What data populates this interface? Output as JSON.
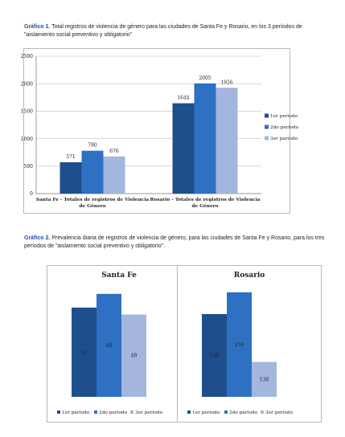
{
  "caption1": {
    "label": "Gráfico 1.",
    "text": " Total registros de violencia de género para las ciudades de Santa Fe y Rosario, en los 3 períodos de \"aislamiento social preventivo y obligatorio\""
  },
  "caption2": {
    "label": "Gráfico 2.",
    "text": " Prevalencia diaria de registros de violencia de género, para las ciudades de Santa Fe y Rosario, para los tres períodos de \"aislamiento social preventivo y obligatorio\"."
  },
  "colors": {
    "p1": "#1f4e8c",
    "p2": "#2e70c2",
    "p3": "#a4b6dd",
    "grid": "#bfbfbf",
    "axis": "#7f7f7f"
  },
  "chart_data": [
    {
      "type": "bar",
      "categories": [
        "Santa Fe - Totales de registros de Violencia de Género",
        "Rosario - Totales de registros de Violencia de Género"
      ],
      "category_lines": [
        [
          "Santa Fe - Totales de registros de Violencia",
          "de Género"
        ],
        [
          "Rosario - Totales de registros de Violencia",
          "de Género"
        ]
      ],
      "series": [
        {
          "name": "1er período",
          "values": [
            571,
            1644
          ]
        },
        {
          "name": "2do período",
          "values": [
            780,
            2005
          ]
        },
        {
          "name": "3er período",
          "values": [
            676,
            1926
          ]
        }
      ],
      "ylim": [
        0,
        2500
      ],
      "yticks": [
        "0",
        "500",
        "1000",
        "1500",
        "2000",
        "2500"
      ],
      "grid": true,
      "legend": "right"
    },
    {
      "type": "bar",
      "title": "Santa Fe",
      "series": [
        {
          "name": "1er período",
          "values": [
            52
          ]
        },
        {
          "name": "2do período",
          "values": [
            60
          ]
        },
        {
          "name": "3er período",
          "values": [
            48
          ]
        }
      ],
      "ylim": [
        0,
        66
      ],
      "legend": "bottom"
    },
    {
      "type": "bar",
      "title": "Rosario",
      "series": [
        {
          "name": "1er período",
          "values": [
            149
          ]
        },
        {
          "name": "2do período",
          "values": [
            154
          ]
        },
        {
          "name": "3er período",
          "values": [
            138
          ]
        }
      ],
      "ylim": [
        130,
        156
      ],
      "legend": "bottom"
    }
  ]
}
